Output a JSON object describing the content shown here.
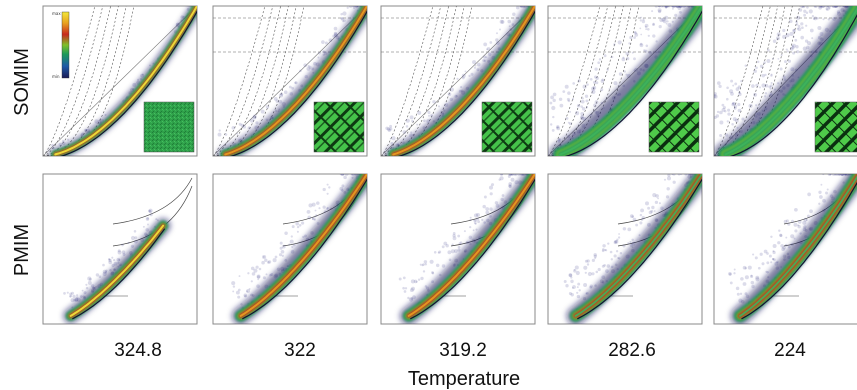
{
  "chart_data": {
    "type": "heatmap",
    "xlabel": "Temperature",
    "rows": [
      "SOMIM",
      "PMIM"
    ],
    "categories": [
      "324.8",
      "322",
      "319.2",
      "282.6",
      "224"
    ],
    "colorbar_tick_labels": [
      "max",
      "min"
    ],
    "colormap": [
      "#1a1a55",
      "#1f5aa8",
      "#1d9a5a",
      "#7fbf2a",
      "#c8281e",
      "#e8a020",
      "#f2e83a"
    ],
    "density_spread": {
      "SOMIM": [
        0.15,
        0.35,
        0.4,
        0.9,
        1.0
      ],
      "PMIM": [
        0.35,
        0.55,
        0.55,
        0.6,
        0.65
      ]
    },
    "inset_pattern": [
      "noise",
      "domains",
      "domains",
      "stripes",
      "stripes"
    ],
    "grid": false
  }
}
